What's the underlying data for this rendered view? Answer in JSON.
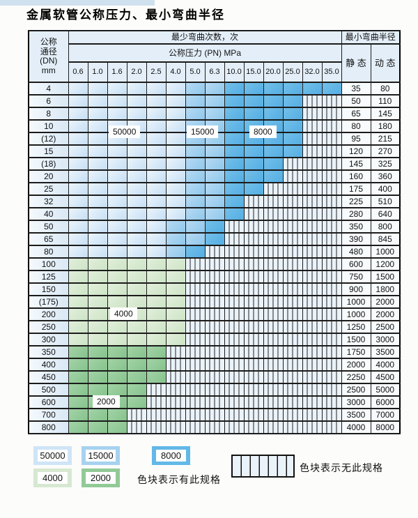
{
  "page": {
    "title": "金属软管公称压力、最小弯曲半径"
  },
  "table": {
    "corner": [
      "公称",
      "通径",
      "(DN)",
      "mm"
    ],
    "bend_cycles_header": "最少弯曲次数，次",
    "bend_radius_header": "最小弯曲半径",
    "pressure_header": "公称压力 (PN) MPa",
    "static_label": "静 态",
    "dynamic_label": "动 态",
    "pressure_columns": [
      "0.6",
      "1.0",
      "1.6",
      "2.0",
      "2.5",
      "4.0",
      "5.0",
      "6.3",
      "10.0",
      "15.0",
      "20.0",
      "25.0",
      "32.0",
      "35.0"
    ],
    "zone_legend_note": "cell codes: b1=50000 cycles, b2=15000, b3=8000, g1=4000, g2=2000, x=no spec (striped)",
    "rows": [
      {
        "dn": "4",
        "static": "35",
        "dynamic": "80",
        "cells": [
          "b1",
          "b1",
          "b1",
          "b1",
          "b1",
          "b1",
          "b2",
          "b2",
          "b3",
          "b3",
          "b3",
          "b3",
          "b3",
          "b3"
        ]
      },
      {
        "dn": "6",
        "static": "50",
        "dynamic": "110",
        "cells": [
          "b1",
          "b1",
          "b1",
          "b1",
          "b1",
          "b1",
          "b2",
          "b2",
          "b3",
          "b3",
          "b3",
          "b3",
          "x",
          "x"
        ]
      },
      {
        "dn": "8",
        "static": "65",
        "dynamic": "145",
        "cells": [
          "b1",
          "b1",
          "b1",
          "b1",
          "b1",
          "b1",
          "b2",
          "b2",
          "b3",
          "b3",
          "b3",
          "b3",
          "x",
          "x"
        ]
      },
      {
        "dn": "10",
        "static": "80",
        "dynamic": "180",
        "cells": [
          "b1",
          "b1",
          "b1",
          "b1",
          "b1",
          "b1",
          "b2",
          "b2",
          "b3",
          "b3",
          "b3",
          "b3",
          "x",
          "x"
        ]
      },
      {
        "dn": "(12)",
        "static": "95",
        "dynamic": "215",
        "cells": [
          "b1",
          "b1",
          "b1",
          "b1",
          "b1",
          "b1",
          "b2",
          "b2",
          "b3",
          "b3",
          "b3",
          "b3",
          "x",
          "x"
        ]
      },
      {
        "dn": "15",
        "static": "120",
        "dynamic": "270",
        "cells": [
          "b1",
          "b1",
          "b1",
          "b1",
          "b1",
          "b1",
          "b2",
          "b2",
          "b3",
          "b3",
          "b3",
          "b3",
          "x",
          "x"
        ]
      },
      {
        "dn": "(18)",
        "static": "145",
        "dynamic": "325",
        "cells": [
          "b1",
          "b1",
          "b1",
          "b1",
          "b1",
          "b1",
          "b2",
          "b2",
          "b3",
          "b3",
          "b3",
          "x",
          "x",
          "x"
        ]
      },
      {
        "dn": "20",
        "static": "160",
        "dynamic": "360",
        "cells": [
          "b1",
          "b1",
          "b1",
          "b1",
          "b1",
          "b1",
          "b2",
          "b2",
          "b3",
          "b3",
          "b3",
          "x",
          "x",
          "x"
        ]
      },
      {
        "dn": "25",
        "static": "175",
        "dynamic": "400",
        "cells": [
          "b1",
          "b1",
          "b1",
          "b1",
          "b1",
          "b1",
          "b2",
          "b2",
          "b3",
          "b3",
          "x",
          "x",
          "x",
          "x"
        ]
      },
      {
        "dn": "32",
        "static": "225",
        "dynamic": "510",
        "cells": [
          "b1",
          "b1",
          "b1",
          "b1",
          "b1",
          "b1",
          "b2",
          "b2",
          "b3",
          "x",
          "x",
          "x",
          "x",
          "x"
        ]
      },
      {
        "dn": "40",
        "static": "280",
        "dynamic": "640",
        "cells": [
          "b1",
          "b1",
          "b1",
          "b1",
          "b1",
          "b1",
          "b2",
          "b2",
          "b3",
          "x",
          "x",
          "x",
          "x",
          "x"
        ]
      },
      {
        "dn": "50",
        "static": "350",
        "dynamic": "800",
        "cells": [
          "b1",
          "b1",
          "b1",
          "b1",
          "b1",
          "b2",
          "b2",
          "b3",
          "x",
          "x",
          "x",
          "x",
          "x",
          "x"
        ]
      },
      {
        "dn": "65",
        "static": "390",
        "dynamic": "845",
        "cells": [
          "b1",
          "b1",
          "b1",
          "b1",
          "b1",
          "b2",
          "b2",
          "b3",
          "x",
          "x",
          "x",
          "x",
          "x",
          "x"
        ]
      },
      {
        "dn": "80",
        "static": "480",
        "dynamic": "1000",
        "cells": [
          "b1",
          "b1",
          "b1",
          "b1",
          "b1",
          "b2",
          "b3",
          "x",
          "x",
          "x",
          "x",
          "x",
          "x",
          "x"
        ]
      },
      {
        "dn": "100",
        "static": "600",
        "dynamic": "1200",
        "cells": [
          "g1",
          "g1",
          "g1",
          "g1",
          "g1",
          "g1",
          "x",
          "x",
          "x",
          "x",
          "x",
          "x",
          "x",
          "x"
        ]
      },
      {
        "dn": "125",
        "static": "750",
        "dynamic": "1500",
        "cells": [
          "g1",
          "g1",
          "g1",
          "g1",
          "g1",
          "g1",
          "x",
          "x",
          "x",
          "x",
          "x",
          "x",
          "x",
          "x"
        ]
      },
      {
        "dn": "150",
        "static": "900",
        "dynamic": "1800",
        "cells": [
          "g1",
          "g1",
          "g1",
          "g1",
          "g1",
          "g1",
          "x",
          "x",
          "x",
          "x",
          "x",
          "x",
          "x",
          "x"
        ]
      },
      {
        "dn": "(175)",
        "static": "1000",
        "dynamic": "2000",
        "cells": [
          "g1",
          "g1",
          "g1",
          "g1",
          "g1",
          "g1",
          "x",
          "x",
          "x",
          "x",
          "x",
          "x",
          "x",
          "x"
        ]
      },
      {
        "dn": "200",
        "static": "1000",
        "dynamic": "2000",
        "cells": [
          "g1",
          "g1",
          "g1",
          "g1",
          "g1",
          "g1",
          "x",
          "x",
          "x",
          "x",
          "x",
          "x",
          "x",
          "x"
        ]
      },
      {
        "dn": "250",
        "static": "1250",
        "dynamic": "2500",
        "cells": [
          "g1",
          "g1",
          "g1",
          "g1",
          "g1",
          "g1",
          "x",
          "x",
          "x",
          "x",
          "x",
          "x",
          "x",
          "x"
        ]
      },
      {
        "dn": "300",
        "static": "1500",
        "dynamic": "3000",
        "cells": [
          "g1",
          "g1",
          "g1",
          "g1",
          "g1",
          "g1",
          "x",
          "x",
          "x",
          "x",
          "x",
          "x",
          "x",
          "x"
        ]
      },
      {
        "dn": "350",
        "static": "1750",
        "dynamic": "3500",
        "cells": [
          "g2",
          "g2",
          "g2",
          "g2",
          "g2",
          "x",
          "x",
          "x",
          "x",
          "x",
          "x",
          "x",
          "x",
          "x"
        ]
      },
      {
        "dn": "400",
        "static": "2000",
        "dynamic": "4000",
        "cells": [
          "g2",
          "g2",
          "g2",
          "g2",
          "g2",
          "x",
          "x",
          "x",
          "x",
          "x",
          "x",
          "x",
          "x",
          "x"
        ]
      },
      {
        "dn": "450",
        "static": "2250",
        "dynamic": "4500",
        "cells": [
          "g2",
          "g2",
          "g2",
          "g2",
          "g2",
          "x",
          "x",
          "x",
          "x",
          "x",
          "x",
          "x",
          "x",
          "x"
        ]
      },
      {
        "dn": "500",
        "static": "2500",
        "dynamic": "5000",
        "cells": [
          "g2",
          "g2",
          "g2",
          "g2",
          "x",
          "x",
          "x",
          "x",
          "x",
          "x",
          "x",
          "x",
          "x",
          "x"
        ]
      },
      {
        "dn": "600",
        "static": "3000",
        "dynamic": "6000",
        "cells": [
          "g2",
          "g2",
          "g2",
          "g2",
          "x",
          "x",
          "x",
          "x",
          "x",
          "x",
          "x",
          "x",
          "x",
          "x"
        ]
      },
      {
        "dn": "700",
        "static": "3500",
        "dynamic": "7000",
        "cells": [
          "g2",
          "g2",
          "g2",
          "x",
          "x",
          "x",
          "x",
          "x",
          "x",
          "x",
          "x",
          "x",
          "x",
          "x"
        ]
      },
      {
        "dn": "800",
        "static": "4000",
        "dynamic": "8000",
        "cells": [
          "g2",
          "g2",
          "g2",
          "x",
          "x",
          "x",
          "x",
          "x",
          "x",
          "x",
          "x",
          "x",
          "x",
          "x"
        ]
      }
    ]
  },
  "overlays": [
    {
      "value": "50000"
    },
    {
      "value": "15000"
    },
    {
      "value": "8000"
    },
    {
      "value": "4000"
    },
    {
      "value": "2000"
    }
  ],
  "legend": {
    "items": [
      {
        "value": "50000"
      },
      {
        "value": "15000"
      },
      {
        "value": "8000"
      },
      {
        "value": "4000"
      },
      {
        "value": "2000"
      }
    ],
    "has_spec_text": "色块表示有此规格",
    "no_spec_text": "色块表示无此规格"
  },
  "colors": {
    "cycles_50000": "#cfe4f6",
    "cycles_15000": "#a6d2ef",
    "cycles_8000": "#63b8e7",
    "cycles_4000": "#d7e8d1",
    "cycles_2000": "#92ca97",
    "stripe_bg": "#ebf3fa",
    "grid_line": "#1b1b1b"
  }
}
